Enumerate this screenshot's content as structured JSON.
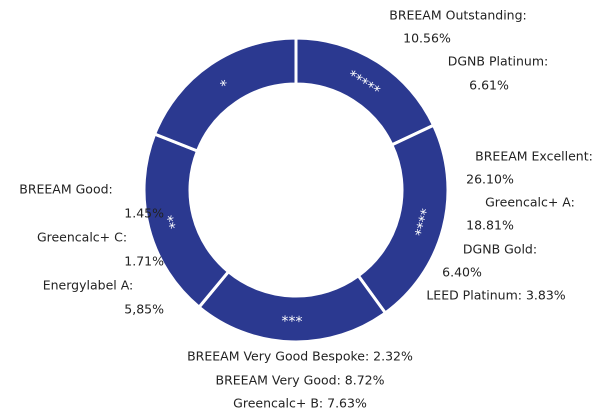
{
  "chart_data": {
    "type": "donut",
    "categories": [
      "*****",
      "****",
      "***",
      "**",
      "*"
    ],
    "values": [
      18,
      22,
      21,
      20,
      19
    ],
    "color": "#2b3990",
    "annotations": [
      {
        "lines": [
          "BREEAM Outstanding:",
          "10.56%",
          "DGNB Platinum:",
          "6.61%"
        ]
      },
      {
        "lines": [
          "BREEAM Excellent:",
          "26.10%",
          "Greencalc+ A:",
          "18.81%",
          "DGNB Gold:",
          "6.40%",
          "LEED Platinum: 3.83%"
        ]
      },
      {
        "lines": [
          "BREEAM Very Good Bespoke: 2.32%",
          "BREEAM Very Good: 8.72%",
          "Greencalc+ B: 7.63%"
        ]
      },
      {
        "lines": [
          "BREEAM Good:",
          "1.45%",
          "Greencalc+ C:",
          "1.71%",
          "Energylabel A:",
          "5,85%"
        ]
      }
    ]
  }
}
